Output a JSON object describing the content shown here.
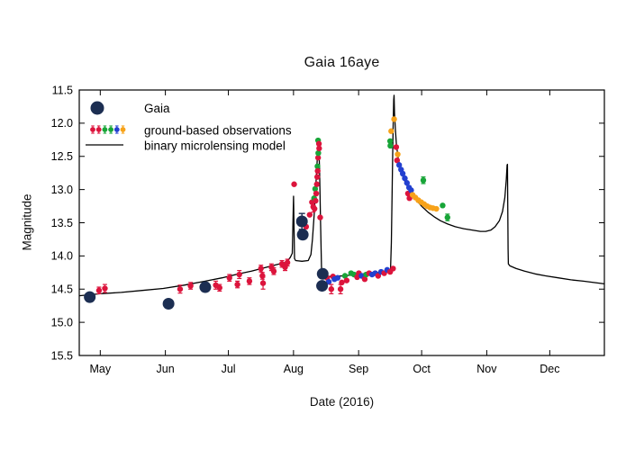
{
  "figure": {
    "title": "Gaia 16aye",
    "xlabel": "Date (2016)",
    "ylabel": "Magnitude"
  },
  "legend": {
    "items": [
      {
        "label": "Gaia",
        "marker": "gaia-dot"
      },
      {
        "label": "ground-based observations",
        "marker": "multi-color-dots"
      },
      {
        "label": "binary microlensing model",
        "marker": "line"
      }
    ],
    "ground_marker_colors": [
      "red",
      "red",
      "green",
      "green",
      "blue",
      "orange"
    ]
  },
  "colors": {
    "red": "#DC143C",
    "green": "#18A538",
    "blue": "#2340D0",
    "orange": "#F7A219",
    "gaia": "#1C2E52",
    "model": "#000000"
  },
  "chart_data": {
    "type": "scatter",
    "title": "Gaia 16aye",
    "xlabel": "Date (2016)",
    "ylabel": "Magnitude",
    "x_unit": "days since 2016-05-01",
    "xlim": [
      -10,
      240
    ],
    "ylim": [
      15.5,
      11.5
    ],
    "y_axis_inverted": true,
    "grid": false,
    "legend_position": "upper-left-inside",
    "x_ticks": [
      {
        "day": 0,
        "label": "May"
      },
      {
        "day": 31,
        "label": "Jun"
      },
      {
        "day": 61,
        "label": "Jul"
      },
      {
        "day": 92,
        "label": "Aug"
      },
      {
        "day": 123,
        "label": "Sep"
      },
      {
        "day": 153,
        "label": "Oct"
      },
      {
        "day": 184,
        "label": "Nov"
      },
      {
        "day": 214,
        "label": "Dec"
      }
    ],
    "y_ticks": [
      "11.5",
      "12.0",
      "12.5",
      "13.0",
      "13.5",
      "14.0",
      "14.5",
      "15.0",
      "15.5"
    ],
    "series": [
      {
        "name": "Gaia",
        "type": "scatter",
        "color_key": "gaia",
        "marker_radius": 6.5,
        "points": [
          {
            "d": -5.0,
            "m": 14.62,
            "err": 0.05
          },
          {
            "d": 32.5,
            "m": 14.72,
            "err": 0.05
          },
          {
            "d": 50.0,
            "m": 14.47,
            "err": 0.05
          },
          {
            "d": 96.0,
            "m": 13.48,
            "err": 0.12
          },
          {
            "d": 96.4,
            "m": 13.68,
            "err": 0.05
          },
          {
            "d": 105.6,
            "m": 14.45,
            "err": 0.05
          },
          {
            "d": 105.9,
            "m": 14.27,
            "err": 0.05
          }
        ]
      },
      {
        "name": "ground-based observations",
        "type": "scatter",
        "marker_radius": 3.2,
        "points": [
          {
            "d": -0.6,
            "m": 14.52,
            "c": "red",
            "err": 0.05
          },
          {
            "d": 2.2,
            "m": 14.49,
            "c": "red",
            "err": 0.06
          },
          {
            "d": 38.0,
            "m": 14.5,
            "c": "red",
            "err": 0.06
          },
          {
            "d": 43.0,
            "m": 14.45,
            "c": "red",
            "err": 0.05
          },
          {
            "d": 55.0,
            "m": 14.44,
            "c": "red",
            "err": 0.06
          },
          {
            "d": 56.8,
            "m": 14.48,
            "c": "red",
            "err": 0.05
          },
          {
            "d": 61.5,
            "m": 14.33,
            "c": "red",
            "err": 0.05
          },
          {
            "d": 65.3,
            "m": 14.43,
            "c": "red",
            "err": 0.05
          },
          {
            "d": 66.2,
            "m": 14.28,
            "c": "red",
            "err": 0.06
          },
          {
            "d": 71.0,
            "m": 14.38,
            "c": "red",
            "err": 0.05
          },
          {
            "d": 76.5,
            "m": 14.19,
            "c": "red",
            "err": 0.05
          },
          {
            "d": 77.2,
            "m": 14.3,
            "c": "red",
            "err": 0.05
          },
          {
            "d": 77.5,
            "m": 14.41,
            "c": "red",
            "err": 0.09
          },
          {
            "d": 81.5,
            "m": 14.17,
            "c": "red",
            "err": 0.05
          },
          {
            "d": 82.6,
            "m": 14.23,
            "c": "red",
            "err": 0.05
          },
          {
            "d": 86.5,
            "m": 14.12,
            "c": "red",
            "err": 0.05
          },
          {
            "d": 88.0,
            "m": 14.17,
            "c": "red",
            "err": 0.05
          },
          {
            "d": 89.1,
            "m": 14.1,
            "c": "red",
            "err": 0.05
          },
          {
            "d": 92.3,
            "m": 12.92,
            "c": "red"
          },
          {
            "d": 98.0,
            "m": 13.56,
            "c": "red"
          },
          {
            "d": 99.7,
            "m": 13.38,
            "c": "red"
          },
          {
            "d": 100.8,
            "m": 13.19,
            "c": "red"
          },
          {
            "d": 101.4,
            "m": 13.26,
            "c": "red",
            "err": 0.08
          },
          {
            "d": 101.8,
            "m": 13.13,
            "c": "green"
          },
          {
            "d": 102.0,
            "m": 13.29,
            "c": "red"
          },
          {
            "d": 102.3,
            "m": 12.99,
            "c": "green"
          },
          {
            "d": 102.5,
            "m": 13.17,
            "c": "red"
          },
          {
            "d": 102.8,
            "m": 13.06,
            "c": "red"
          },
          {
            "d": 103.1,
            "m": 12.92,
            "c": "red"
          },
          {
            "d": 103.3,
            "m": 12.81,
            "c": "red"
          },
          {
            "d": 103.4,
            "m": 12.65,
            "c": "green"
          },
          {
            "d": 103.5,
            "m": 12.72,
            "c": "red"
          },
          {
            "d": 103.7,
            "m": 12.52,
            "c": "red"
          },
          {
            "d": 103.8,
            "m": 12.45,
            "c": "green"
          },
          {
            "d": 103.7,
            "m": 12.26,
            "c": "green"
          },
          {
            "d": 104.1,
            "m": 12.31,
            "c": "red"
          },
          {
            "d": 104.2,
            "m": 12.38,
            "c": "red"
          },
          {
            "d": 104.7,
            "m": 13.42,
            "c": "red"
          },
          {
            "d": 108.0,
            "m": 14.33,
            "c": "red"
          },
          {
            "d": 108.8,
            "m": 14.39,
            "c": "blue"
          },
          {
            "d": 110.0,
            "m": 14.5,
            "c": "red",
            "err": 0.07
          },
          {
            "d": 110.8,
            "m": 14.31,
            "c": "red"
          },
          {
            "d": 111.5,
            "m": 14.35,
            "c": "blue"
          },
          {
            "d": 113.0,
            "m": 14.33,
            "c": "blue"
          },
          {
            "d": 114.4,
            "m": 14.5,
            "c": "red",
            "err": 0.07
          },
          {
            "d": 115.0,
            "m": 14.4,
            "c": "red"
          },
          {
            "d": 116.5,
            "m": 14.3,
            "c": "green"
          },
          {
            "d": 117.3,
            "m": 14.37,
            "c": "red"
          },
          {
            "d": 119.4,
            "m": 14.26,
            "c": "green"
          },
          {
            "d": 120.8,
            "m": 14.28,
            "c": "green"
          },
          {
            "d": 122.3,
            "m": 14.32,
            "c": "red"
          },
          {
            "d": 123.1,
            "m": 14.26,
            "c": "red"
          },
          {
            "d": 124.4,
            "m": 14.3,
            "c": "blue"
          },
          {
            "d": 125.9,
            "m": 14.35,
            "c": "red"
          },
          {
            "d": 126.6,
            "m": 14.28,
            "c": "green"
          },
          {
            "d": 128.0,
            "m": 14.26,
            "c": "red"
          },
          {
            "d": 129.4,
            "m": 14.28,
            "c": "blue"
          },
          {
            "d": 130.9,
            "m": 14.26,
            "c": "blue"
          },
          {
            "d": 132.3,
            "m": 14.3,
            "c": "red"
          },
          {
            "d": 133.7,
            "m": 14.24,
            "c": "blue"
          },
          {
            "d": 135.2,
            "m": 14.26,
            "c": "red"
          },
          {
            "d": 136.6,
            "m": 14.21,
            "c": "blue"
          },
          {
            "d": 138.0,
            "m": 14.24,
            "c": "red"
          },
          {
            "d": 139.4,
            "m": 14.19,
            "c": "red"
          },
          {
            "d": 138.0,
            "m": 12.27,
            "c": "green"
          },
          {
            "d": 138.1,
            "m": 12.34,
            "c": "green"
          },
          {
            "d": 138.5,
            "m": 12.12,
            "c": "orange"
          },
          {
            "d": 139.9,
            "m": 11.94,
            "c": "orange"
          },
          {
            "d": 140.9,
            "m": 12.36,
            "c": "red"
          },
          {
            "d": 141.3,
            "m": 12.56,
            "c": "red"
          },
          {
            "d": 141.6,
            "m": 12.47,
            "c": "orange"
          },
          {
            "d": 142.3,
            "m": 12.63,
            "c": "blue"
          },
          {
            "d": 143.2,
            "m": 12.7,
            "c": "blue"
          },
          {
            "d": 144.0,
            "m": 12.76,
            "c": "blue"
          },
          {
            "d": 145.0,
            "m": 12.83,
            "c": "blue"
          },
          {
            "d": 146.0,
            "m": 12.9,
            "c": "blue"
          },
          {
            "d": 146.5,
            "m": 13.06,
            "c": "red"
          },
          {
            "d": 147.0,
            "m": 12.97,
            "c": "blue"
          },
          {
            "d": 147.2,
            "m": 13.13,
            "c": "red"
          },
          {
            "d": 148.0,
            "m": 13.01,
            "c": "blue"
          },
          {
            "d": 148.7,
            "m": 13.08,
            "c": "orange"
          },
          {
            "d": 150.0,
            "m": 13.12,
            "c": "orange"
          },
          {
            "d": 151.4,
            "m": 13.16,
            "c": "orange"
          },
          {
            "d": 152.8,
            "m": 13.19,
            "c": "orange"
          },
          {
            "d": 153.8,
            "m": 12.86,
            "c": "green",
            "err": 0.05
          },
          {
            "d": 154.2,
            "m": 13.22,
            "c": "orange"
          },
          {
            "d": 155.6,
            "m": 13.25,
            "c": "orange"
          },
          {
            "d": 157.0,
            "m": 13.27,
            "c": "orange"
          },
          {
            "d": 158.4,
            "m": 13.28,
            "c": "orange"
          },
          {
            "d": 160.0,
            "m": 13.29,
            "c": "orange"
          },
          {
            "d": 163.0,
            "m": 13.24,
            "c": "green"
          },
          {
            "d": 165.3,
            "m": 13.42,
            "c": "green",
            "err": 0.05
          }
        ]
      },
      {
        "name": "binary microlensing model",
        "type": "line",
        "color_key": "model",
        "points": [
          [
            -10.1,
            14.6
          ],
          [
            0,
            14.57
          ],
          [
            10,
            14.55
          ],
          [
            20,
            14.52
          ],
          [
            30,
            14.49
          ],
          [
            40,
            14.44
          ],
          [
            50,
            14.38
          ],
          [
            58,
            14.33
          ],
          [
            66,
            14.27
          ],
          [
            72,
            14.23
          ],
          [
            78,
            14.18
          ],
          [
            84,
            14.13
          ],
          [
            88,
            14.1
          ],
          [
            89,
            14.08
          ],
          [
            90.5,
            14.02
          ],
          [
            91.4,
            13.96
          ],
          [
            92.0,
            13.1
          ],
          [
            92.5,
            14.04
          ],
          [
            93.0,
            14.07
          ],
          [
            96,
            14.08
          ],
          [
            99,
            14.07
          ],
          [
            100.3,
            13.98
          ],
          [
            101.0,
            13.75
          ],
          [
            101.8,
            13.4
          ],
          [
            102.6,
            12.95
          ],
          [
            103.3,
            12.55
          ],
          [
            103.8,
            12.3
          ],
          [
            104.0,
            12.28
          ],
          [
            104.4,
            12.7
          ],
          [
            104.9,
            13.5
          ],
          [
            105.3,
            14.15
          ],
          [
            105.5,
            14.29
          ],
          [
            106,
            14.31
          ],
          [
            110,
            14.31
          ],
          [
            116,
            14.3
          ],
          [
            122,
            14.28
          ],
          [
            128,
            14.26
          ],
          [
            133,
            14.25
          ],
          [
            137,
            14.23
          ],
          [
            138.2,
            14.2
          ],
          [
            138.6,
            13.8
          ],
          [
            139.0,
            12.9
          ],
          [
            139.4,
            12.1
          ],
          [
            139.7,
            11.65
          ],
          [
            139.85,
            11.58
          ],
          [
            140.1,
            11.85
          ],
          [
            140.5,
            12.1
          ],
          [
            141.0,
            12.32
          ],
          [
            141.8,
            12.52
          ],
          [
            143,
            12.7
          ],
          [
            144.5,
            12.84
          ],
          [
            146,
            12.94
          ],
          [
            148,
            13.05
          ],
          [
            150.5,
            13.16
          ],
          [
            153,
            13.25
          ],
          [
            156,
            13.34
          ],
          [
            159,
            13.41
          ],
          [
            162,
            13.47
          ],
          [
            165.5,
            13.52
          ],
          [
            169,
            13.56
          ],
          [
            173,
            13.59
          ],
          [
            177,
            13.61
          ],
          [
            181,
            13.63
          ],
          [
            183.5,
            13.63
          ],
          [
            186,
            13.61
          ],
          [
            188,
            13.56
          ],
          [
            190,
            13.47
          ],
          [
            191.5,
            13.33
          ],
          [
            192.6,
            13.12
          ],
          [
            193.3,
            12.85
          ],
          [
            193.7,
            12.63
          ],
          [
            193.85,
            12.62
          ],
          [
            194.0,
            13.2
          ],
          [
            194.15,
            13.9
          ],
          [
            194.3,
            14.12
          ],
          [
            195,
            14.15
          ],
          [
            198,
            14.19
          ],
          [
            202,
            14.23
          ],
          [
            207,
            14.27
          ],
          [
            212,
            14.3
          ],
          [
            218,
            14.33
          ],
          [
            224,
            14.36
          ],
          [
            230,
            14.38
          ],
          [
            235,
            14.4
          ],
          [
            240,
            14.42
          ]
        ]
      }
    ]
  }
}
